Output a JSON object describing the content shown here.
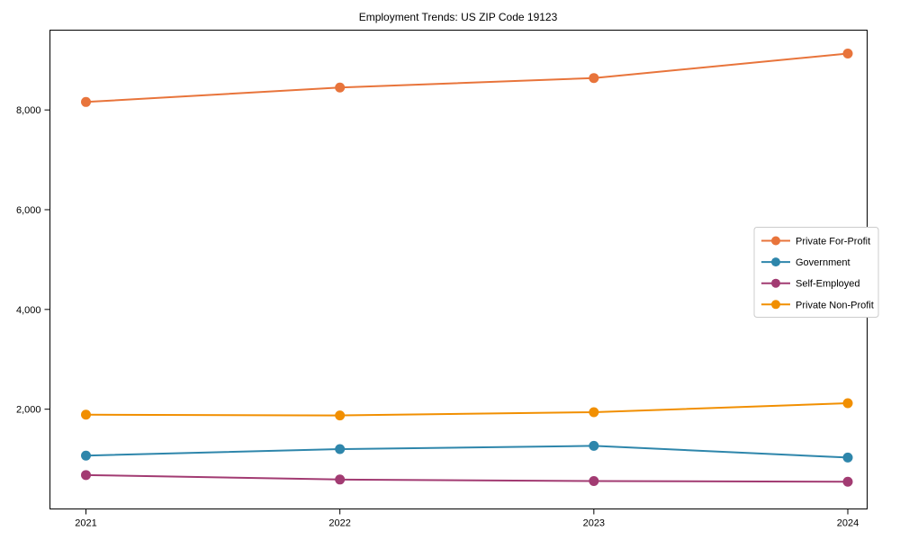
{
  "chart_data": {
    "type": "line",
    "title": "Employment Trends: US ZIP Code 19123",
    "categories": [
      "2021",
      "2022",
      "2023",
      "2024"
    ],
    "series": [
      {
        "name": "Private For-Profit",
        "color": "#E8743B",
        "values": [
          8160,
          8450,
          8640,
          9130
        ]
      },
      {
        "name": "Government",
        "color": "#2E86AB",
        "values": [
          1070,
          1200,
          1265,
          1030
        ]
      },
      {
        "name": "Self-Employed",
        "color": "#A23B72",
        "values": [
          680,
          590,
          560,
          545
        ]
      },
      {
        "name": "Private Non-Profit",
        "color": "#F18F01",
        "values": [
          1890,
          1875,
          1940,
          2120
        ]
      }
    ],
    "xlabel": "",
    "ylabel": "",
    "ylim": [
      0,
      9600
    ],
    "yticks": [
      2000,
      4000,
      6000,
      8000
    ],
    "ytick_labels": [
      "2,000",
      "4,000",
      "6,000",
      "8,000"
    ],
    "grid": false,
    "legend_position": "center right",
    "marker": "circle",
    "background_color": "#ffffff",
    "axis_color": "#000000"
  }
}
